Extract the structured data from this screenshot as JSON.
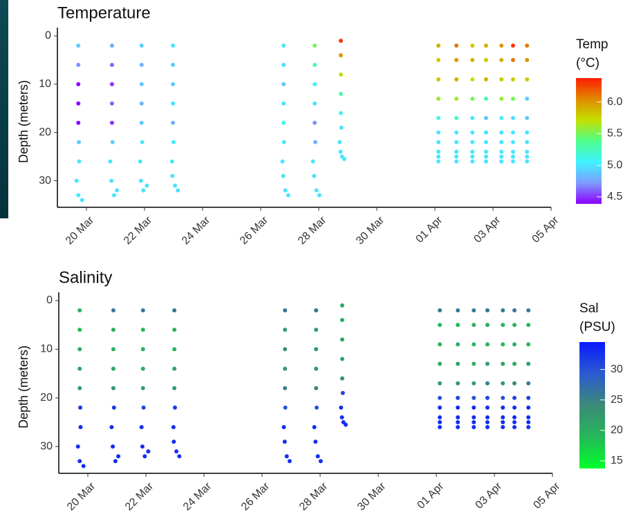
{
  "chart_data": [
    {
      "type": "scatter",
      "title": "Temperature",
      "y_label": "Depth (meters)",
      "y_inverted": true,
      "xlim": [
        19,
        36
      ],
      "ylim": [
        0,
        35.5
      ],
      "xticks": [
        {
          "value": 20,
          "label": "20 Mar"
        },
        {
          "value": 22,
          "label": "22 Mar"
        },
        {
          "value": 24,
          "label": "24 Mar"
        },
        {
          "value": 26,
          "label": "26 Mar"
        },
        {
          "value": 28,
          "label": "28 Mar"
        },
        {
          "value": 30,
          "label": "30 Mar"
        },
        {
          "value": 32,
          "label": "01 Apr"
        },
        {
          "value": 34,
          "label": "03 Apr"
        },
        {
          "value": 36,
          "label": "05 Apr"
        }
      ],
      "yticks": [
        0,
        10,
        20,
        30
      ],
      "colorbar": {
        "title": [
          "Temp",
          "(°C)"
        ],
        "lim": [
          4.39,
          6.38
        ],
        "ticks": [
          4.5,
          {
            "value": 5.0,
            "label": "5.0"
          },
          5.5,
          {
            "value": 6.0,
            "label": "6.0"
          }
        ],
        "colors": [
          "#8a00ff",
          "#7f9cff",
          "#3ff3ff",
          "#4dff8a",
          "#c4e000",
          "#e08a00",
          "#ff1a00"
        ]
      },
      "x": [
        19.72,
        19.72,
        19.72,
        19.72,
        19.72,
        19.74,
        19.75,
        19.66,
        19.72,
        19.85,
        20.88,
        20.88,
        20.88,
        20.88,
        20.88,
        20.9,
        20.82,
        20.86,
        20.95,
        21.05,
        21.9,
        21.9,
        21.9,
        21.9,
        21.9,
        21.92,
        21.85,
        21.88,
        21.96,
        22.08,
        22.98,
        22.98,
        22.98,
        22.98,
        22.98,
        23.0,
        22.95,
        22.96,
        23.05,
        23.15,
        26.79,
        26.79,
        26.79,
        26.79,
        26.79,
        26.8,
        26.75,
        26.78,
        26.85,
        26.95,
        27.86,
        27.86,
        27.86,
        27.86,
        27.86,
        27.88,
        27.8,
        27.84,
        27.92,
        28.02,
        28.76,
        28.76,
        28.76,
        28.76,
        28.76,
        28.78,
        28.72,
        28.75,
        28.8,
        28.88,
        32.12,
        32.12,
        32.12,
        32.12,
        32.12,
        32.12,
        32.12,
        32.12,
        32.12,
        32.12,
        32.74,
        32.74,
        32.74,
        32.74,
        32.74,
        32.74,
        32.74,
        32.74,
        32.74,
        32.74,
        33.29,
        33.29,
        33.29,
        33.29,
        33.29,
        33.29,
        33.29,
        33.29,
        33.29,
        33.29,
        33.76,
        33.76,
        33.76,
        33.76,
        33.76,
        33.76,
        33.76,
        33.76,
        33.76,
        33.76,
        34.29,
        34.29,
        34.29,
        34.29,
        34.29,
        34.29,
        34.29,
        34.29,
        34.29,
        34.29,
        34.69,
        34.69,
        34.69,
        34.69,
        34.69,
        34.69,
        34.69,
        34.69,
        34.69,
        34.69,
        35.17,
        35.17,
        35.17,
        35.17,
        35.17,
        35.17,
        35.17,
        35.17,
        35.17,
        35.17
      ],
      "y": [
        2,
        6,
        10,
        14,
        18,
        22,
        26,
        30,
        33,
        34,
        2,
        6,
        10,
        14,
        18,
        22,
        26,
        30,
        33,
        32,
        2,
        6,
        10,
        14,
        18,
        22,
        26,
        30,
        32,
        31,
        2,
        6,
        10,
        14,
        18,
        22,
        26,
        29,
        31,
        32,
        2,
        6,
        10,
        14,
        18,
        22,
        26,
        29,
        32,
        33,
        2,
        6,
        10,
        14,
        18,
        22,
        26,
        29,
        32,
        33,
        1,
        4,
        8,
        12,
        16,
        19,
        22,
        24,
        25,
        25.5,
        2,
        5,
        9,
        13,
        17,
        20,
        22,
        24,
        25,
        26,
        2,
        5,
        9,
        13,
        17,
        20,
        22,
        24,
        25,
        26,
        2,
        5,
        9,
        13,
        17,
        20,
        22,
        24,
        25,
        26,
        2,
        5,
        9,
        13,
        17,
        20,
        22,
        24,
        25,
        26,
        2,
        5,
        9,
        13,
        17,
        20,
        22,
        24,
        25,
        26,
        2,
        5,
        9,
        13,
        17,
        20,
        22,
        24,
        25,
        26,
        2,
        5,
        9,
        13,
        17,
        20,
        22,
        24,
        25,
        26
      ],
      "values": [
        4.9,
        4.7,
        4.4,
        4.4,
        4.4,
        4.9,
        5.0,
        5.0,
        5.0,
        5.0,
        4.8,
        4.6,
        4.5,
        4.6,
        4.5,
        4.9,
        5.0,
        5.0,
        5.0,
        5.0,
        4.9,
        4.8,
        4.9,
        4.8,
        4.9,
        5.0,
        5.0,
        5.0,
        5.0,
        5.0,
        5.0,
        4.9,
        4.9,
        5.0,
        4.8,
        5.0,
        5.0,
        5.0,
        5.0,
        5.0,
        5.0,
        5.0,
        4.9,
        5.0,
        5.1,
        5.0,
        5.0,
        5.0,
        5.0,
        5.0,
        5.5,
        5.3,
        5.1,
        5.0,
        4.7,
        4.8,
        5.0,
        5.0,
        5.0,
        5.0,
        6.3,
        6.0,
        5.7,
        5.3,
        5.1,
        5.0,
        5.0,
        5.0,
        5.0,
        5.0,
        5.9,
        5.8,
        5.8,
        5.6,
        5.1,
        5.0,
        5.0,
        5.0,
        5.0,
        5.0,
        6.1,
        6.0,
        5.9,
        5.6,
        5.2,
        5.0,
        5.0,
        5.0,
        5.0,
        5.0,
        5.8,
        5.9,
        5.7,
        5.5,
        5.0,
        5.0,
        5.0,
        5.0,
        5.0,
        5.0,
        5.9,
        5.8,
        5.9,
        5.3,
        4.9,
        5.0,
        5.0,
        5.0,
        5.0,
        5.0,
        6.0,
        5.9,
        5.8,
        5.6,
        5.1,
        5.0,
        5.0,
        5.0,
        5.0,
        5.0,
        6.3,
        6.1,
        5.8,
        5.5,
        5.0,
        5.0,
        5.0,
        5.0,
        5.0,
        5.0,
        6.1,
        6.0,
        5.8,
        4.9,
        4.9,
        5.0,
        5.0,
        5.0,
        5.0,
        5.0
      ]
    },
    {
      "type": "scatter",
      "title": "Salinity",
      "y_label": "Depth (meters)",
      "y_inverted": true,
      "xlim": [
        19,
        36
      ],
      "ylim": [
        0,
        35.5
      ],
      "xticks": [
        {
          "value": 20,
          "label": "20 Mar"
        },
        {
          "value": 22,
          "label": "22 Mar"
        },
        {
          "value": 24,
          "label": "24 Mar"
        },
        {
          "value": 26,
          "label": "26 Mar"
        },
        {
          "value": 28,
          "label": "28 Mar"
        },
        {
          "value": 30,
          "label": "30 Mar"
        },
        {
          "value": 32,
          "label": "01 Apr"
        },
        {
          "value": 34,
          "label": "03 Apr"
        },
        {
          "value": 36,
          "label": "05 Apr"
        }
      ],
      "yticks": [
        0,
        10,
        20,
        30
      ],
      "colorbar": {
        "title": [
          "Sal",
          "(PSU)"
        ],
        "lim": [
          13.75,
          34.5
        ],
        "ticks": [
          15,
          20,
          25,
          30
        ],
        "colors": [
          "#00ff2a",
          "#25b85a",
          "#3c8a78",
          "#2b5ad0",
          "#0a1aff"
        ]
      },
      "x": [
        19.72,
        19.72,
        19.72,
        19.72,
        19.72,
        19.74,
        19.75,
        19.66,
        19.72,
        19.85,
        20.88,
        20.88,
        20.88,
        20.88,
        20.88,
        20.9,
        20.82,
        20.86,
        20.95,
        21.05,
        21.9,
        21.9,
        21.9,
        21.9,
        21.9,
        21.92,
        21.85,
        21.88,
        21.96,
        22.08,
        22.98,
        22.98,
        22.98,
        22.98,
        22.98,
        23.0,
        22.95,
        22.96,
        23.05,
        23.15,
        26.79,
        26.79,
        26.79,
        26.79,
        26.79,
        26.8,
        26.75,
        26.78,
        26.85,
        26.95,
        27.86,
        27.86,
        27.86,
        27.86,
        27.86,
        27.88,
        27.8,
        27.84,
        27.92,
        28.02,
        28.76,
        28.76,
        28.76,
        28.76,
        28.76,
        28.78,
        28.72,
        28.75,
        28.8,
        28.88,
        32.12,
        32.12,
        32.12,
        32.12,
        32.12,
        32.12,
        32.12,
        32.12,
        32.12,
        32.12,
        32.74,
        32.74,
        32.74,
        32.74,
        32.74,
        32.74,
        32.74,
        32.74,
        32.74,
        32.74,
        33.29,
        33.29,
        33.29,
        33.29,
        33.29,
        33.29,
        33.29,
        33.29,
        33.29,
        33.29,
        33.76,
        33.76,
        33.76,
        33.76,
        33.76,
        33.76,
        33.76,
        33.76,
        33.76,
        33.76,
        34.29,
        34.29,
        34.29,
        34.29,
        34.29,
        34.29,
        34.29,
        34.29,
        34.29,
        34.29,
        34.69,
        34.69,
        34.69,
        34.69,
        34.69,
        34.69,
        34.69,
        34.69,
        34.69,
        34.69,
        35.17,
        35.17,
        35.17,
        35.17,
        35.17,
        35.17,
        35.17,
        35.17,
        35.17,
        35.17
      ],
      "y": [
        2,
        6,
        10,
        14,
        18,
        22,
        26,
        30,
        33,
        34,
        2,
        6,
        10,
        14,
        18,
        22,
        26,
        30,
        33,
        32,
        2,
        6,
        10,
        14,
        18,
        22,
        26,
        30,
        32,
        31,
        2,
        6,
        10,
        14,
        18,
        22,
        26,
        29,
        31,
        32,
        2,
        6,
        10,
        14,
        18,
        22,
        26,
        29,
        32,
        33,
        2,
        6,
        10,
        14,
        18,
        22,
        26,
        29,
        32,
        33,
        1,
        4,
        8,
        12,
        16,
        19,
        22,
        24,
        25,
        25.5,
        2,
        5,
        9,
        13,
        17,
        20,
        22,
        24,
        25,
        26,
        2,
        5,
        9,
        13,
        17,
        20,
        22,
        24,
        25,
        26,
        2,
        5,
        9,
        13,
        17,
        20,
        22,
        24,
        25,
        26,
        2,
        5,
        9,
        13,
        17,
        20,
        22,
        24,
        25,
        26,
        2,
        5,
        9,
        13,
        17,
        20,
        22,
        24,
        25,
        26,
        2,
        5,
        9,
        13,
        17,
        20,
        22,
        24,
        25,
        26,
        2,
        5,
        9,
        13,
        17,
        20,
        22,
        24,
        25,
        26
      ],
      "values": [
        20,
        19,
        20,
        21,
        22,
        32,
        33,
        33,
        33,
        33,
        26,
        20,
        20,
        21,
        23,
        32,
        33,
        33,
        33,
        33,
        26,
        19,
        20,
        20,
        22,
        31,
        33,
        33,
        33,
        33,
        26,
        20,
        19,
        21,
        22,
        32,
        33,
        33,
        33,
        33,
        26,
        22,
        23,
        23,
        25,
        30,
        33,
        33,
        33,
        33,
        26,
        22,
        22,
        23,
        24,
        30,
        33,
        33,
        33,
        33,
        21,
        20,
        21,
        22,
        24,
        31,
        33,
        33,
        33,
        33,
        26,
        19,
        19,
        20,
        22,
        30,
        33,
        33,
        33,
        33,
        26,
        19,
        20,
        21,
        23,
        31,
        33,
        33,
        33,
        33,
        26,
        20,
        19,
        20,
        22,
        30,
        33,
        33,
        33,
        33,
        26,
        20,
        20,
        22,
        25,
        31,
        33,
        33,
        33,
        33,
        26,
        19,
        19,
        21,
        23,
        30,
        33,
        33,
        33,
        33,
        26,
        20,
        20,
        21,
        24,
        31,
        33,
        33,
        33,
        33,
        26,
        19,
        19,
        22,
        26,
        31,
        33,
        33,
        33,
        33
      ]
    }
  ]
}
